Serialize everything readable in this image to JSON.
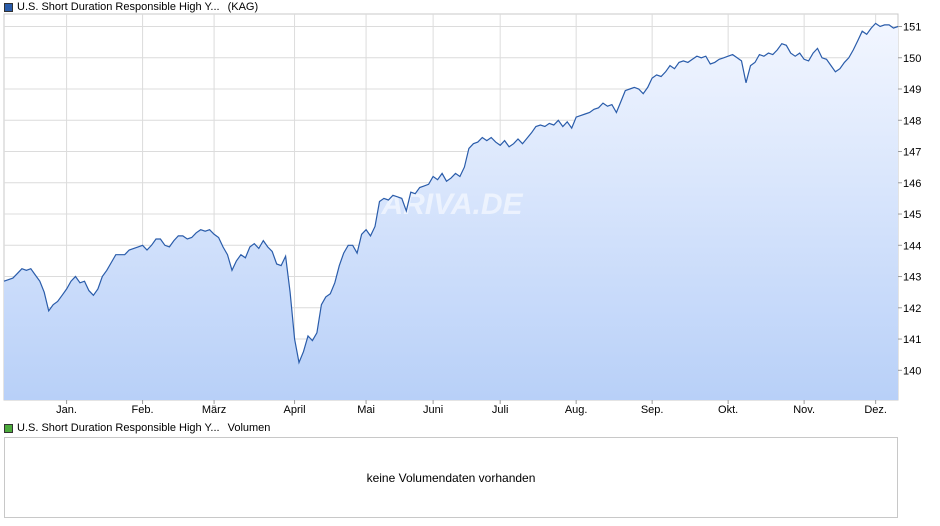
{
  "chart_data": {
    "type": "area",
    "series": [
      {
        "name": "U.S. Short Duration Responsible High Y...",
        "tag": "(KAG)",
        "color": "#2a5caa",
        "points": [
          [
            0.0,
            142.85
          ],
          [
            1.0,
            142.95
          ],
          [
            1.5,
            143.1
          ],
          [
            2.0,
            143.25
          ],
          [
            2.5,
            143.2
          ],
          [
            3.0,
            143.25
          ],
          [
            3.5,
            143.05
          ],
          [
            4.0,
            142.85
          ],
          [
            4.5,
            142.5
          ],
          [
            5.0,
            141.9
          ],
          [
            5.5,
            142.1
          ],
          [
            6.0,
            142.2
          ],
          [
            6.5,
            142.4
          ],
          [
            7.0,
            142.6
          ],
          [
            7.5,
            142.85
          ],
          [
            8.0,
            143.0
          ],
          [
            8.5,
            142.8
          ],
          [
            9.0,
            142.85
          ],
          [
            9.5,
            142.55
          ],
          [
            10.0,
            142.4
          ],
          [
            10.5,
            142.6
          ],
          [
            11.0,
            143.0
          ],
          [
            11.5,
            143.2
          ],
          [
            12.0,
            143.45
          ],
          [
            12.5,
            143.7
          ],
          [
            13.0,
            143.7
          ],
          [
            13.5,
            143.7
          ],
          [
            14.0,
            143.85
          ],
          [
            15.0,
            143.95
          ],
          [
            15.5,
            144.0
          ],
          [
            16.0,
            143.85
          ],
          [
            16.5,
            144.0
          ],
          [
            17.0,
            144.2
          ],
          [
            17.5,
            144.2
          ],
          [
            18.0,
            144.0
          ],
          [
            18.5,
            143.95
          ],
          [
            19.0,
            144.15
          ],
          [
            19.5,
            144.3
          ],
          [
            20.0,
            144.3
          ],
          [
            20.5,
            144.2
          ],
          [
            21.0,
            144.25
          ],
          [
            21.5,
            144.4
          ],
          [
            22.0,
            144.5
          ],
          [
            22.5,
            144.45
          ],
          [
            23.0,
            144.5
          ],
          [
            23.5,
            144.35
          ],
          [
            24.0,
            144.25
          ],
          [
            24.5,
            143.95
          ],
          [
            25.0,
            143.7
          ],
          [
            25.5,
            143.2
          ],
          [
            26.0,
            143.5
          ],
          [
            26.5,
            143.7
          ],
          [
            27.0,
            143.6
          ],
          [
            27.5,
            143.95
          ],
          [
            28.0,
            144.05
          ],
          [
            28.5,
            143.9
          ],
          [
            29.0,
            144.15
          ],
          [
            29.5,
            143.95
          ],
          [
            30.0,
            143.8
          ],
          [
            30.5,
            143.4
          ],
          [
            31.0,
            143.35
          ],
          [
            31.5,
            143.65
          ],
          [
            32.0,
            142.5
          ],
          [
            32.5,
            141.0
          ],
          [
            33.0,
            140.25
          ],
          [
            33.5,
            140.6
          ],
          [
            34.0,
            141.1
          ],
          [
            34.5,
            140.95
          ],
          [
            35.0,
            141.2
          ],
          [
            35.5,
            142.1
          ],
          [
            36.0,
            142.35
          ],
          [
            36.5,
            142.45
          ],
          [
            37.0,
            142.8
          ],
          [
            37.5,
            143.35
          ],
          [
            38.0,
            143.75
          ],
          [
            38.5,
            144.0
          ],
          [
            39.0,
            144.0
          ],
          [
            39.5,
            143.75
          ],
          [
            40.0,
            144.35
          ],
          [
            40.5,
            144.5
          ],
          [
            41.0,
            144.3
          ],
          [
            41.5,
            144.6
          ],
          [
            42.0,
            145.4
          ],
          [
            42.5,
            145.5
          ],
          [
            43.0,
            145.45
          ],
          [
            43.5,
            145.6
          ],
          [
            44.0,
            145.55
          ],
          [
            44.5,
            145.5
          ],
          [
            45.0,
            145.1
          ],
          [
            45.5,
            145.7
          ],
          [
            46.0,
            145.65
          ],
          [
            46.5,
            145.85
          ],
          [
            47.0,
            145.9
          ],
          [
            47.5,
            145.95
          ],
          [
            48.0,
            146.2
          ],
          [
            48.5,
            146.1
          ],
          [
            49.0,
            146.3
          ],
          [
            49.5,
            146.05
          ],
          [
            50.0,
            146.15
          ],
          [
            50.5,
            146.3
          ],
          [
            51.0,
            146.2
          ],
          [
            51.5,
            146.5
          ],
          [
            52.0,
            147.1
          ],
          [
            52.5,
            147.25
          ],
          [
            53.0,
            147.3
          ],
          [
            53.5,
            147.45
          ],
          [
            54.0,
            147.35
          ],
          [
            54.5,
            147.45
          ],
          [
            55.0,
            147.3
          ],
          [
            55.5,
            147.2
          ],
          [
            56.0,
            147.35
          ],
          [
            56.5,
            147.15
          ],
          [
            57.0,
            147.25
          ],
          [
            57.5,
            147.4
          ],
          [
            58.0,
            147.25
          ],
          [
            59.0,
            147.6
          ],
          [
            59.5,
            147.8
          ],
          [
            60.0,
            147.85
          ],
          [
            60.5,
            147.8
          ],
          [
            61.0,
            147.9
          ],
          [
            61.5,
            147.85
          ],
          [
            62.0,
            148.0
          ],
          [
            62.5,
            147.8
          ],
          [
            63.0,
            147.95
          ],
          [
            63.5,
            147.75
          ],
          [
            64.0,
            148.1
          ],
          [
            64.5,
            148.15
          ],
          [
            65.0,
            148.2
          ],
          [
            65.5,
            148.25
          ],
          [
            66.0,
            148.35
          ],
          [
            66.5,
            148.4
          ],
          [
            67.0,
            148.55
          ],
          [
            67.5,
            148.45
          ],
          [
            68.0,
            148.5
          ],
          [
            68.5,
            148.25
          ],
          [
            69.0,
            148.6
          ],
          [
            69.5,
            148.95
          ],
          [
            70.0,
            149.0
          ],
          [
            70.5,
            149.05
          ],
          [
            71.0,
            149.0
          ],
          [
            71.5,
            148.85
          ],
          [
            72.0,
            149.05
          ],
          [
            72.5,
            149.35
          ],
          [
            73.0,
            149.45
          ],
          [
            73.5,
            149.4
          ],
          [
            74.0,
            149.55
          ],
          [
            74.5,
            149.75
          ],
          [
            75.0,
            149.65
          ],
          [
            75.5,
            149.85
          ],
          [
            76.0,
            149.9
          ],
          [
            76.5,
            149.85
          ],
          [
            77.0,
            149.95
          ],
          [
            77.5,
            150.05
          ],
          [
            78.0,
            150.0
          ],
          [
            78.5,
            150.05
          ],
          [
            79.0,
            149.8
          ],
          [
            79.5,
            149.85
          ],
          [
            80.0,
            149.95
          ],
          [
            80.5,
            150.0
          ],
          [
            81.0,
            150.05
          ],
          [
            81.5,
            150.1
          ],
          [
            82.0,
            150.0
          ],
          [
            82.5,
            149.9
          ],
          [
            83.0,
            149.2
          ],
          [
            83.5,
            149.75
          ],
          [
            84.0,
            149.85
          ],
          [
            84.5,
            150.1
          ],
          [
            85.0,
            150.05
          ],
          [
            85.5,
            150.15
          ],
          [
            86.0,
            150.1
          ],
          [
            86.5,
            150.25
          ],
          [
            87.0,
            150.45
          ],
          [
            87.5,
            150.4
          ],
          [
            88.0,
            150.15
          ],
          [
            88.5,
            150.05
          ],
          [
            89.0,
            150.15
          ],
          [
            89.5,
            149.95
          ],
          [
            90.0,
            149.9
          ],
          [
            90.5,
            150.15
          ],
          [
            91.0,
            150.3
          ],
          [
            91.5,
            150.0
          ],
          [
            92.0,
            149.95
          ],
          [
            92.5,
            149.75
          ],
          [
            93.0,
            149.55
          ],
          [
            93.5,
            149.65
          ],
          [
            94.0,
            149.85
          ],
          [
            94.5,
            150.0
          ],
          [
            95.0,
            150.25
          ],
          [
            95.5,
            150.55
          ],
          [
            96.0,
            150.85
          ],
          [
            96.5,
            150.75
          ],
          [
            97.0,
            150.95
          ],
          [
            97.5,
            151.1
          ],
          [
            98.0,
            151.0
          ],
          [
            98.5,
            151.05
          ],
          [
            99.0,
            151.05
          ],
          [
            99.5,
            150.95
          ],
          [
            100.0,
            151.0
          ]
        ]
      },
      {
        "name": "U.S. Short Duration Responsible High Y...",
        "tag": "Volumen",
        "color": "#4caa3c"
      }
    ],
    "x_ticks": [
      {
        "pos": 7.0,
        "label": "Jan."
      },
      {
        "pos": 15.5,
        "label": "Feb."
      },
      {
        "pos": 23.5,
        "label": "März"
      },
      {
        "pos": 32.5,
        "label": "April"
      },
      {
        "pos": 40.5,
        "label": "Mai"
      },
      {
        "pos": 48.0,
        "label": "Juni"
      },
      {
        "pos": 55.5,
        "label": "Juli"
      },
      {
        "pos": 64.0,
        "label": "Aug."
      },
      {
        "pos": 72.5,
        "label": "Sep."
      },
      {
        "pos": 81.0,
        "label": "Okt."
      },
      {
        "pos": 89.5,
        "label": "Nov."
      },
      {
        "pos": 97.5,
        "label": "Dez."
      }
    ],
    "y_ticks": [
      140,
      141,
      142,
      143,
      144,
      145,
      146,
      147,
      148,
      149,
      150,
      151
    ],
    "xlim": [
      0,
      100
    ],
    "ylim": [
      139.05,
      151.4
    ],
    "grid": true,
    "y_axis_side": "right",
    "fill_gradient": [
      "#f2f6ff",
      "#b8d0f8"
    ],
    "watermark": "ARIVA.DE"
  },
  "volume_panel": {
    "message": "keine Volumendaten vorhanden"
  }
}
